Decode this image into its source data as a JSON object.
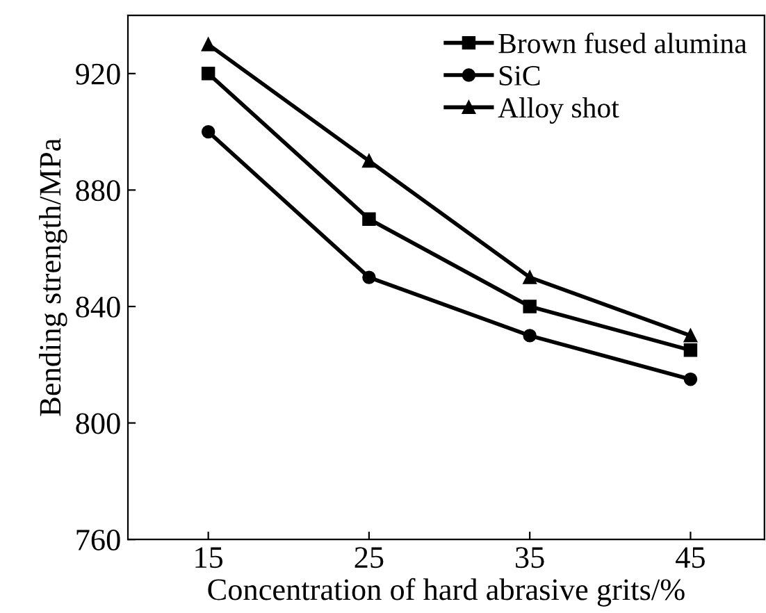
{
  "chart_data": {
    "type": "line",
    "xlabel": "Concentration of hard abrasive grits/%",
    "ylabel": "Bending strength/MPa",
    "x": [
      15,
      25,
      35,
      45
    ],
    "series": [
      {
        "name": "Brown fused alumina",
        "color": "#000000",
        "marker": "square",
        "values": [
          920,
          870,
          840,
          825
        ]
      },
      {
        "name": "SiC",
        "color": "#000000",
        "marker": "circle",
        "values": [
          900,
          850,
          830,
          815
        ]
      },
      {
        "name": "Alloy shot",
        "color": "#000000",
        "marker": "triangle",
        "values": [
          930,
          890,
          850,
          830
        ]
      }
    ],
    "xlim": [
      10,
      49.6
    ],
    "ylim": [
      760,
      940
    ],
    "xticks": [
      15,
      25,
      35,
      45
    ],
    "yticks": [
      760,
      800,
      840,
      880,
      920
    ],
    "grid": false,
    "legend": "top right",
    "line_style": "solid"
  }
}
